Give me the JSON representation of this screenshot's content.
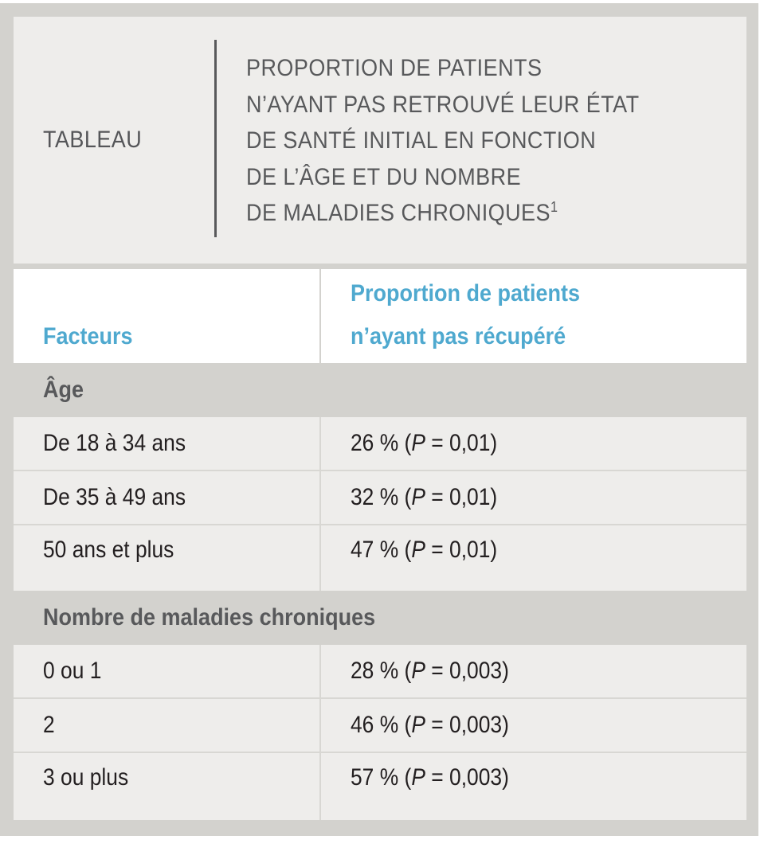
{
  "header": {
    "label": "TABLEAU",
    "title_lines": [
      "PROPORTION DE PATIENTS",
      "N’AYANT PAS RETROUVÉ LEUR ÉTAT",
      "DE SANTÉ INITIAL EN FONCTION",
      "DE L’ÂGE ET DU NOMBRE",
      "DE MALADIES CHRONIQUES"
    ],
    "footnote_ref": "1"
  },
  "columns": {
    "factors": "Facteurs",
    "proportion_line1": "Proportion de patients",
    "proportion_line2": "n’ayant pas récupéré"
  },
  "sections": [
    {
      "title": "Âge",
      "rows": [
        {
          "factor": "De 18 à 34 ans",
          "pct": "26 %",
          "p_label": "P",
          "p_value": "= 0,01"
        },
        {
          "factor": "De 35 à 49 ans",
          "pct": "32 %",
          "p_label": "P",
          "p_value": "= 0,01"
        },
        {
          "factor": "50 ans et plus",
          "pct": "47 %",
          "p_label": "P",
          "p_value": "= 0,01"
        }
      ]
    },
    {
      "title": "Nombre de maladies chroniques",
      "rows": [
        {
          "factor": "0 ou 1",
          "pct": "28 %",
          "p_label": "P",
          "p_value": "= 0,003"
        },
        {
          "factor": "2",
          "pct": "46 %",
          "p_label": "P",
          "p_value": "= 0,003"
        },
        {
          "factor": "3 ou plus",
          "pct": "57 %",
          "p_label": "P",
          "p_value": "= 0,003"
        }
      ]
    }
  ],
  "colors": {
    "accent": "#4fa9cf",
    "frame": "#d3d2ce",
    "cell_bg": "#eeedeb",
    "title_text": "#58595b"
  }
}
